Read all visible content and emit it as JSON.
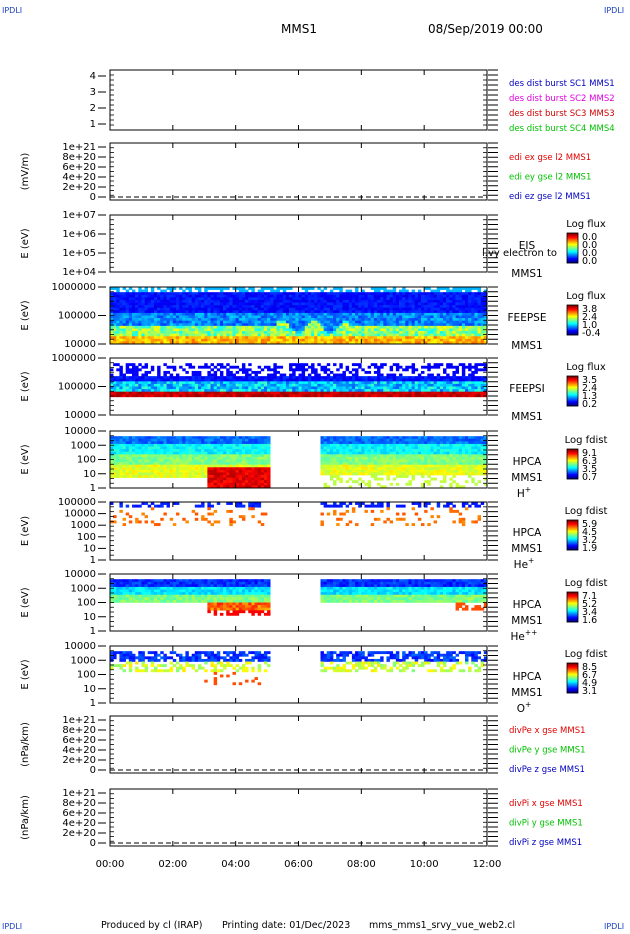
{
  "corner_tag": "IPDLI",
  "header": {
    "title": "MMS1",
    "date": "08/Sep/2019 00:00"
  },
  "footer": {
    "producer": "Produced by cl (IRAP)",
    "printing": "Printing date: 01/Dec/2023",
    "file": "mms_mms1_srvy_vue_web2.cl"
  },
  "overlay_label": "l.vy electron to",
  "colors": {
    "sc1": "#0000c0",
    "sc2": "#e000e0",
    "sc3": "#d00000",
    "sc4": "#00c000",
    "x": "#e00000",
    "y": "#00c000",
    "z": "#0000c0"
  },
  "chart_data": {
    "type": "heatmap",
    "x_axis": {
      "range": [
        "00:00",
        "12:00"
      ],
      "ticks": [
        "00:00",
        "02:00",
        "04:00",
        "06:00",
        "08:00",
        "10:00",
        "12:00"
      ]
    },
    "panels": [
      {
        "id": "p1",
        "type": "line",
        "ylabel": "",
        "yticks": [
          "4",
          "3",
          "2",
          "1"
        ],
        "legend": [
          {
            "text": "des dist burst SC1 MMS1",
            "color": "sc1"
          },
          {
            "text": "des dist burst SC2 MMS2",
            "color": "sc2"
          },
          {
            "text": "des dist burst SC3 MMS3",
            "color": "sc3"
          },
          {
            "text": "des dist burst SC4 MMS4",
            "color": "sc4"
          }
        ]
      },
      {
        "id": "p2",
        "type": "line",
        "ylabel": "(mV/m)",
        "yticks": [
          "1e+21",
          "8e+20",
          "6e+20",
          "4e+20",
          "2e+20",
          "0"
        ],
        "legend": [
          {
            "text": "edi ex gse l2 MMS1",
            "color": "x"
          },
          {
            "text": "edi ey gse l2 MMS1",
            "color": "y"
          },
          {
            "text": "edi ez gse l2 MMS1",
            "color": "z"
          }
        ]
      },
      {
        "id": "p3",
        "type": "heatmap",
        "ylabel": "E (eV)",
        "yticks": [
          "1e+07",
          "1e+06",
          "1e+05",
          "1e+04"
        ],
        "instrument": [
          "EIS",
          "MMS1"
        ],
        "colorbar_title": "Log flux",
        "colorbar_ticks": [
          "0.0",
          "0.0",
          "0.0",
          "0.0"
        ],
        "empty": true
      },
      {
        "id": "p4",
        "type": "heatmap",
        "ylabel": "E (eV)",
        "yticks": [
          "1000000",
          "100000",
          "10000"
        ],
        "instrument": [
          "FEEPSE",
          "MMS1"
        ],
        "colorbar_title": "Log flux",
        "colorbar_ticks": [
          "3.8",
          "2.4",
          "1.0",
          "-0.4"
        ],
        "time_coverage_h": [
          0,
          12
        ]
      },
      {
        "id": "p5",
        "type": "heatmap",
        "ylabel": "E (eV)",
        "yticks": [
          "1000000",
          "100000",
          "10000"
        ],
        "instrument": [
          "FEEPSI",
          "MMS1"
        ],
        "colorbar_title": "Log flux",
        "colorbar_ticks": [
          "3.5",
          "2.4",
          "1.3",
          "0.2"
        ],
        "time_coverage_h": [
          0,
          12
        ]
      },
      {
        "id": "p6",
        "type": "heatmap",
        "ylabel": "E (eV)",
        "yticks": [
          "10000",
          "1000",
          "100",
          "10",
          "1"
        ],
        "instrument": [
          "HPCA",
          "MMS1",
          "H+"
        ],
        "colorbar_title": "Log fdist",
        "colorbar_ticks": [
          "9.1",
          "6.3",
          "3.5",
          "0.7"
        ],
        "data_gap_h": [
          5.1,
          6.7
        ]
      },
      {
        "id": "p7",
        "type": "heatmap",
        "ylabel": "E (eV)",
        "yticks": [
          "100000",
          "10000",
          "1000",
          "100",
          "10",
          "1"
        ],
        "instrument": [
          "HPCA",
          "MMS1",
          "He+"
        ],
        "colorbar_title": "Log fdist",
        "colorbar_ticks": [
          "5.9",
          "4.5",
          "3.2",
          "1.9"
        ],
        "data_gap_h": [
          5.1,
          6.7
        ]
      },
      {
        "id": "p8",
        "type": "heatmap",
        "ylabel": "E (eV)",
        "yticks": [
          "10000",
          "1000",
          "100",
          "10",
          "1"
        ],
        "instrument": [
          "HPCA",
          "MMS1",
          "He++"
        ],
        "colorbar_title": "Log fdist",
        "colorbar_ticks": [
          "7.1",
          "5.2",
          "3.4",
          "1.6"
        ],
        "data_gap_h": [
          5.1,
          6.7
        ]
      },
      {
        "id": "p9",
        "type": "heatmap",
        "ylabel": "E (eV)",
        "yticks": [
          "10000",
          "1000",
          "100",
          "10",
          "1"
        ],
        "instrument": [
          "HPCA",
          "MMS1",
          "O+"
        ],
        "colorbar_title": "Log fdist",
        "colorbar_ticks": [
          "8.5",
          "6.7",
          "4.9",
          "3.1"
        ],
        "data_gap_h": [
          5.1,
          6.7
        ]
      },
      {
        "id": "p10",
        "type": "line",
        "ylabel": "(nPa/km)",
        "yticks": [
          "1e+21",
          "8e+20",
          "6e+20",
          "4e+20",
          "2e+20",
          "0"
        ],
        "legend": [
          {
            "text": "divPe x gse MMS1",
            "color": "x"
          },
          {
            "text": "divPe y gse MMS1",
            "color": "y"
          },
          {
            "text": "divPe z gse MMS1",
            "color": "z"
          }
        ]
      },
      {
        "id": "p11",
        "type": "line",
        "ylabel": "(nPa/km)",
        "yticks": [
          "1e+21",
          "8e+20",
          "6e+20",
          "4e+20",
          "2e+20",
          "0"
        ],
        "legend": [
          {
            "text": "divPi x gse MMS1",
            "color": "x"
          },
          {
            "text": "divPi y gse MMS1",
            "color": "y"
          },
          {
            "text": "divPi z gse MMS1",
            "color": "z"
          }
        ]
      }
    ]
  }
}
